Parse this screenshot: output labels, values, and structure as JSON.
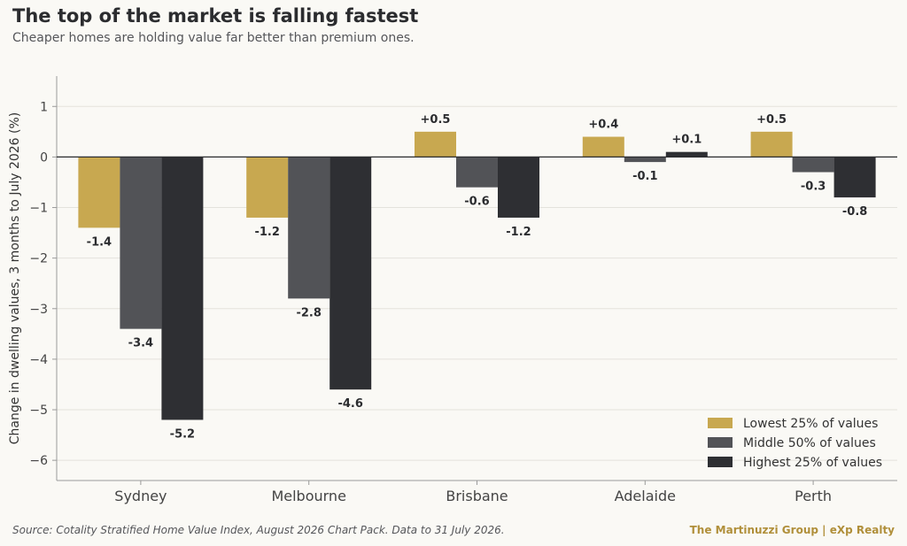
{
  "header": {
    "title": "The top of the market is falling fastest",
    "subtitle": "Cheaper homes are holding value far better than premium ones."
  },
  "footer": {
    "source": "Source: Cotality Stratified Home Value Index, August 2026 Chart Pack. Data to 31 July 2026.",
    "brand": "The Martinuzzi Group  |  eXp Realty"
  },
  "chart_data": {
    "type": "bar",
    "categories": [
      "Sydney",
      "Melbourne",
      "Brisbane",
      "Adelaide",
      "Perth"
    ],
    "series": [
      {
        "name": "Lowest 25% of values",
        "color": "#c8a850",
        "values": [
          -1.4,
          -1.2,
          0.5,
          0.4,
          0.5
        ],
        "labels": [
          "-1.4",
          "-1.2",
          "+0.5",
          "+0.4",
          "+0.5"
        ]
      },
      {
        "name": "Middle 50% of values",
        "color": "#525357",
        "values": [
          -3.4,
          -2.8,
          -0.6,
          -0.1,
          -0.3
        ],
        "labels": [
          "-3.4",
          "-2.8",
          "-0.6",
          "-0.1",
          "-0.3"
        ]
      },
      {
        "name": "Highest 25% of values",
        "color": "#2e2f33",
        "values": [
          -5.2,
          -4.6,
          -1.2,
          0.1,
          -0.8
        ],
        "labels": [
          "-5.2",
          "-4.6",
          "-1.2",
          "+0.1",
          "-0.8"
        ]
      }
    ],
    "ylabel": "Change in dwelling values, 3 months to July 2026 (%)",
    "ylim": [
      -6.4,
      1.6
    ],
    "yticks": [
      1,
      0,
      -1,
      -2,
      -3,
      -4,
      -5,
      -6
    ],
    "ytick_labels": [
      "1",
      "0",
      "−1",
      "−2",
      "−3",
      "−4",
      "−5",
      "−6"
    ],
    "grid": true,
    "legend": "bottom-right"
  }
}
